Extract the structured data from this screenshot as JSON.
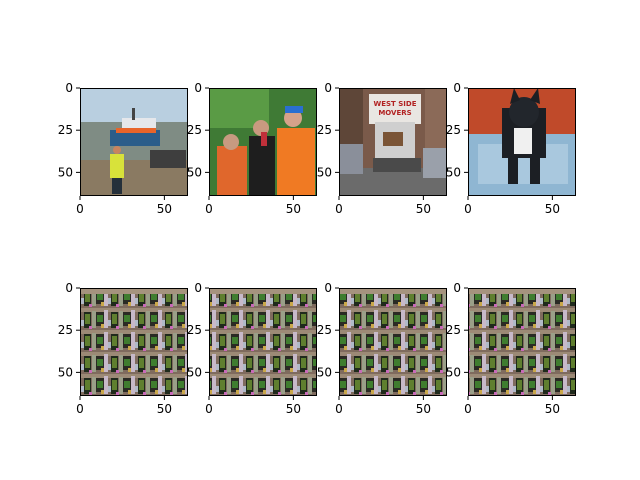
{
  "figure": {
    "grid": {
      "rows": 2,
      "cols": 4
    },
    "grid_lines": false
  },
  "chart_data": [
    {
      "type": "image",
      "row": 0,
      "col": 0,
      "subject": "lifeboat on beach with person in hi-vis vest",
      "xlim": [
        0,
        64
      ],
      "ylim": [
        64,
        0
      ],
      "xticks": [
        0,
        50
      ],
      "yticks": [
        0,
        25,
        50
      ],
      "xlabel": "",
      "ylabel": ""
    },
    {
      "type": "image",
      "row": 0,
      "col": 1,
      "subject": "three men outdoors, one in orange shirt and blue cap",
      "xlim": [
        0,
        64
      ],
      "ylim": [
        64,
        0
      ],
      "xticks": [
        0,
        50
      ],
      "yticks": [
        0,
        25,
        50
      ],
      "xlabel": "",
      "ylabel": ""
    },
    {
      "type": "image",
      "row": 0,
      "col": 2,
      "subject": "moving truck on city street",
      "xlim": [
        0,
        64
      ],
      "ylim": [
        64,
        0
      ],
      "xticks": [
        0,
        50
      ],
      "yticks": [
        0,
        25,
        50
      ],
      "xlabel": "",
      "ylabel": "",
      "annotations": [
        "WEST SIDE",
        "MOVERS"
      ]
    },
    {
      "type": "image",
      "row": 0,
      "col": 3,
      "subject": "black and white french bulldog on blue blanket",
      "xlim": [
        0,
        64
      ],
      "ylim": [
        64,
        0
      ],
      "xticks": [
        0,
        50
      ],
      "yticks": [
        0,
        25,
        50
      ],
      "xlabel": "",
      "ylabel": ""
    },
    {
      "type": "image",
      "row": 1,
      "col": 0,
      "subject": "noisy generated texture grid",
      "xlim": [
        0,
        64
      ],
      "ylim": [
        64,
        0
      ],
      "xticks": [
        0,
        50
      ],
      "yticks": [
        0,
        25,
        50
      ],
      "xlabel": "",
      "ylabel": ""
    },
    {
      "type": "image",
      "row": 1,
      "col": 1,
      "subject": "noisy generated texture grid",
      "xlim": [
        0,
        64
      ],
      "ylim": [
        64,
        0
      ],
      "xticks": [
        0,
        50
      ],
      "yticks": [
        0,
        25,
        50
      ],
      "xlabel": "",
      "ylabel": ""
    },
    {
      "type": "image",
      "row": 1,
      "col": 2,
      "subject": "noisy generated texture grid",
      "xlim": [
        0,
        64
      ],
      "ylim": [
        64,
        0
      ],
      "xticks": [
        0,
        50
      ],
      "yticks": [
        0,
        25,
        50
      ],
      "xlabel": "",
      "ylabel": ""
    },
    {
      "type": "image",
      "row": 1,
      "col": 3,
      "subject": "noisy generated texture grid",
      "xlim": [
        0,
        64
      ],
      "ylim": [
        64,
        0
      ],
      "xticks": [
        0,
        50
      ],
      "yticks": [
        0,
        25,
        50
      ],
      "xlabel": "",
      "ylabel": ""
    }
  ]
}
